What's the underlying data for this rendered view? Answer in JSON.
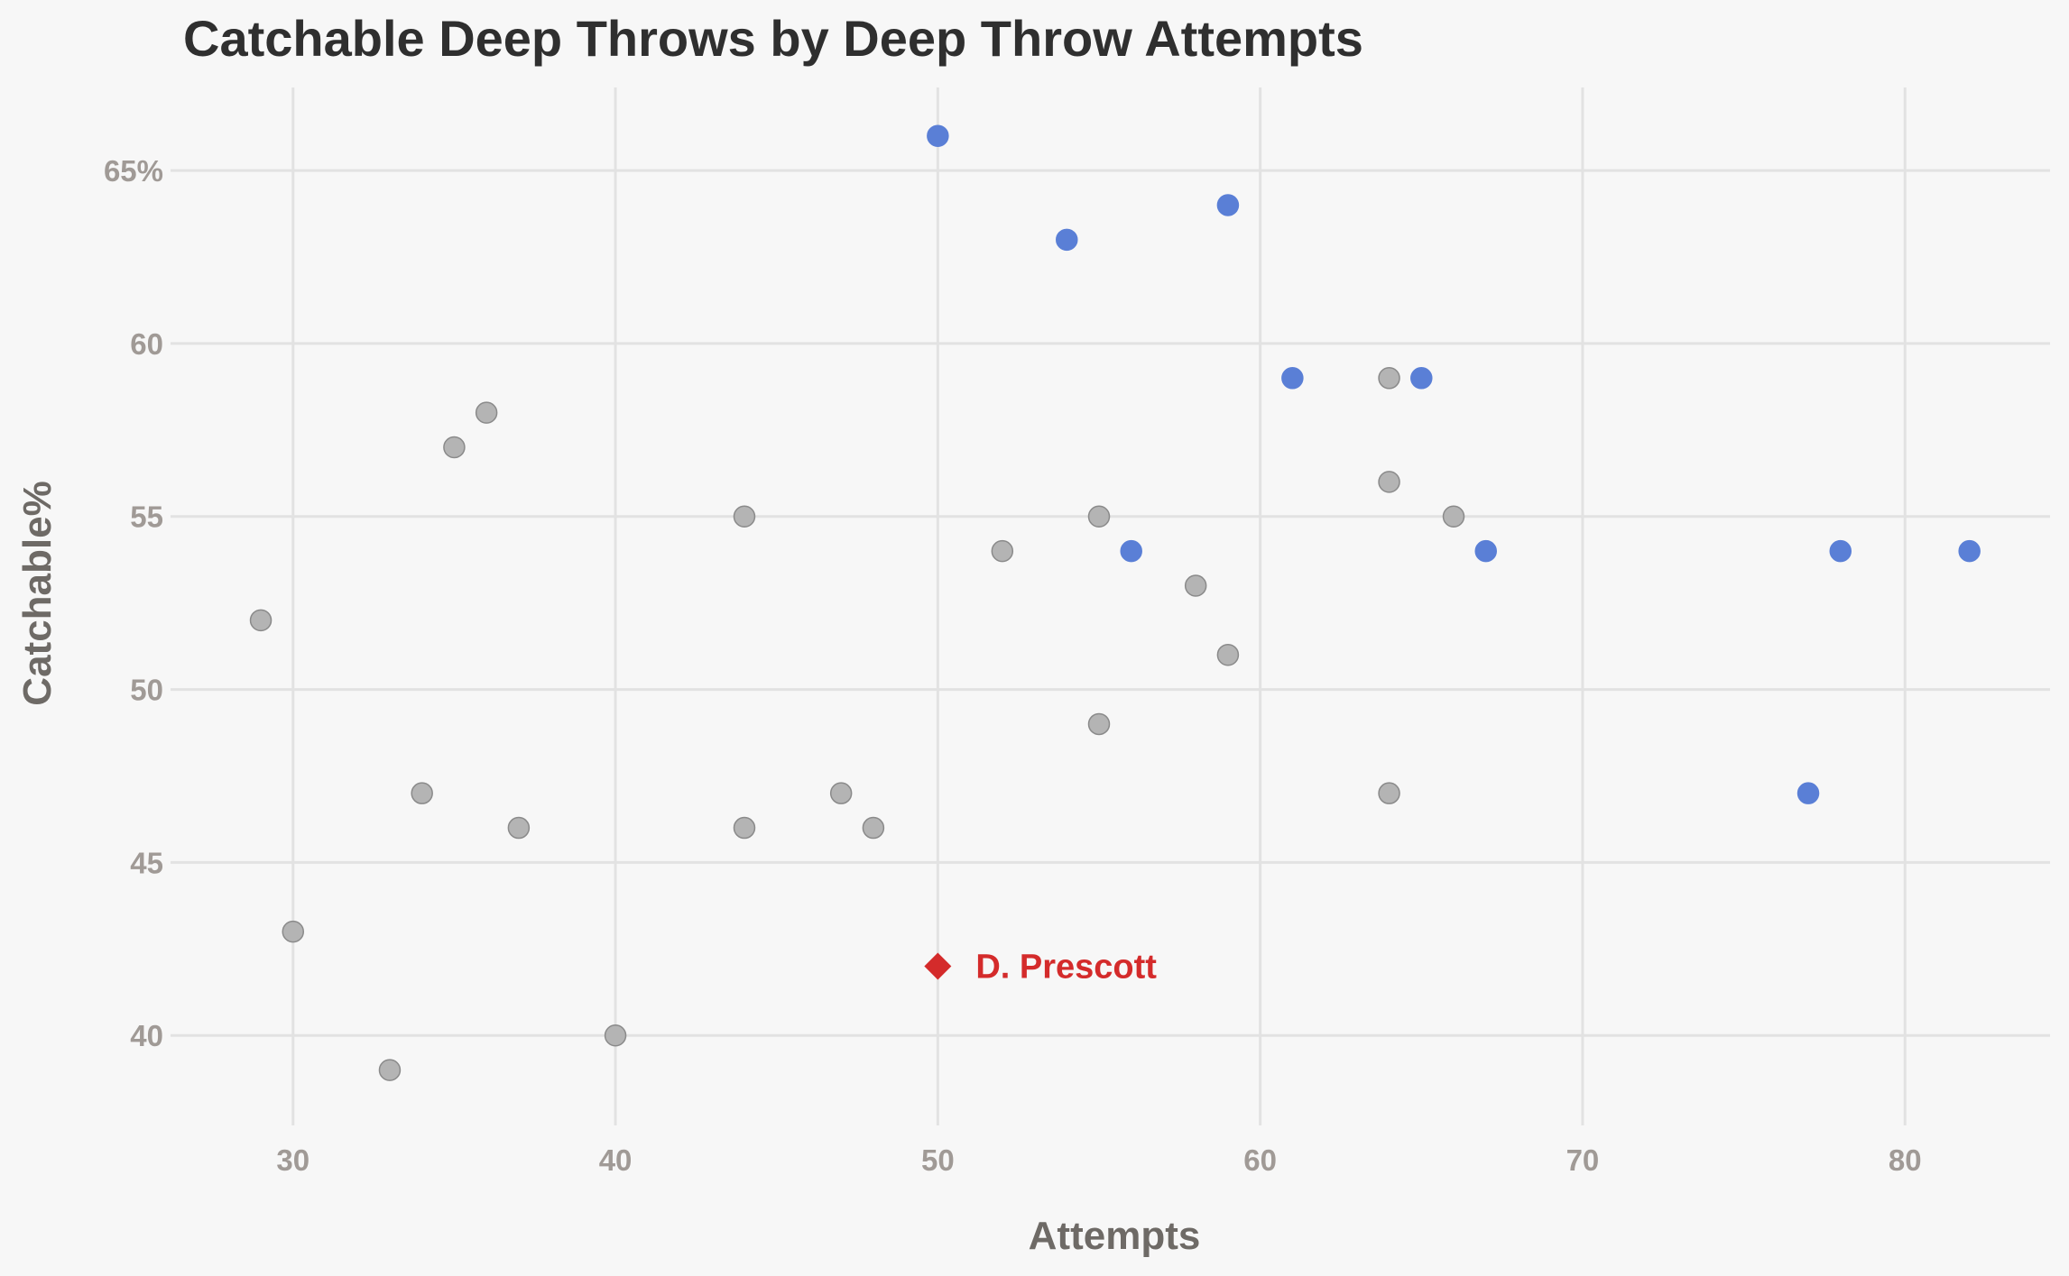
{
  "chart_data": {
    "type": "scatter",
    "title": "Catchable Deep Throws by Deep Throw Attempts",
    "xlabel": "Attempts",
    "ylabel": "Catchable%",
    "xlim": [
      26.2,
      84.5
    ],
    "ylim": [
      37.4,
      67.4
    ],
    "x_ticks": [
      30,
      40,
      50,
      60,
      70,
      80
    ],
    "y_ticks": [
      40,
      45,
      50,
      55,
      60,
      65
    ],
    "y_tick_labels": [
      "40",
      "45",
      "50",
      "55",
      "60",
      "65%"
    ],
    "grid": true,
    "legend": "none",
    "colors": {
      "highlight": "#5a7fd6",
      "other": "#b4b4b4",
      "other_stroke": "#8a8a8a",
      "annotation": "#d42b2b"
    },
    "series": [
      {
        "color_key": "highlight",
        "points": [
          {
            "x": 50,
            "y": 66
          },
          {
            "x": 59,
            "y": 64
          },
          {
            "x": 54,
            "y": 63
          },
          {
            "x": 61,
            "y": 59
          },
          {
            "x": 65,
            "y": 59
          },
          {
            "x": 56,
            "y": 54
          },
          {
            "x": 67,
            "y": 54
          },
          {
            "x": 78,
            "y": 54
          },
          {
            "x": 82,
            "y": 54
          },
          {
            "x": 77,
            "y": 47
          }
        ]
      },
      {
        "color_key": "other",
        "points": [
          {
            "x": 29,
            "y": 52
          },
          {
            "x": 30,
            "y": 43
          },
          {
            "x": 33,
            "y": 39
          },
          {
            "x": 34,
            "y": 47
          },
          {
            "x": 35,
            "y": 57
          },
          {
            "x": 36,
            "y": 58
          },
          {
            "x": 37,
            "y": 46
          },
          {
            "x": 40,
            "y": 40
          },
          {
            "x": 44,
            "y": 55
          },
          {
            "x": 44,
            "y": 46
          },
          {
            "x": 47,
            "y": 47
          },
          {
            "x": 48,
            "y": 46
          },
          {
            "x": 52,
            "y": 54
          },
          {
            "x": 55,
            "y": 55
          },
          {
            "x": 55,
            "y": 49
          },
          {
            "x": 58,
            "y": 53
          },
          {
            "x": 59,
            "y": 51
          },
          {
            "x": 64,
            "y": 59
          },
          {
            "x": 64,
            "y": 56
          },
          {
            "x": 64,
            "y": 47
          },
          {
            "x": 66,
            "y": 55
          }
        ]
      }
    ],
    "annotations": [
      {
        "label": "D. Prescott",
        "x": 50,
        "y": 42,
        "marker": "diamond",
        "color_key": "annotation"
      }
    ]
  }
}
